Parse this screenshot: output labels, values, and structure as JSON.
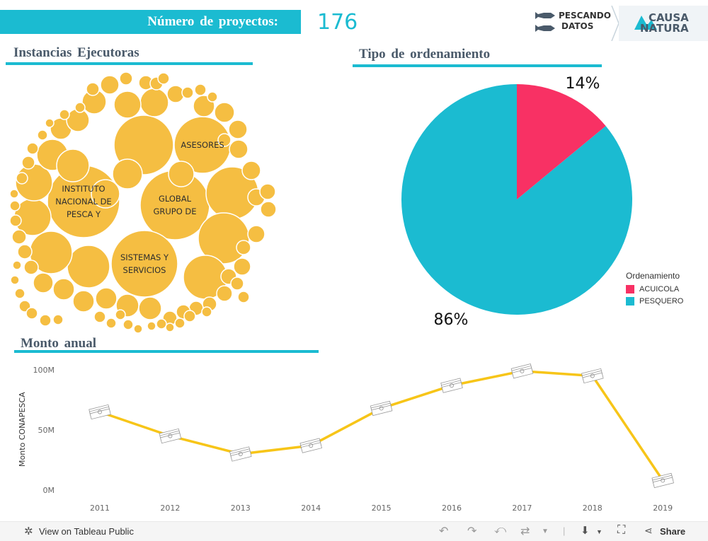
{
  "kpi": {
    "label": "Número de proyectos:",
    "value": "176"
  },
  "brand": {
    "pescando_line1": "PESCANDO",
    "pescando_line2": "DATOS",
    "causa_line1": "CAUSA",
    "causa_line2": "NATURA"
  },
  "sections": {
    "instancias": "Instancias Ejecutoras",
    "tipo": "Tipo de ordenamiento",
    "monto": "Monto anual"
  },
  "bubbles": {
    "labels": [
      {
        "lines": [
          "INSTITUTO",
          "NACIONAL DE",
          "PESCA Y"
        ]
      },
      {
        "lines": [
          "GLOBAL",
          "GRUPO DE"
        ]
      },
      {
        "lines": [
          "ASESORES"
        ]
      },
      {
        "lines": [
          "SISTEMAS Y",
          "SERVICIOS"
        ]
      }
    ],
    "color": "#f5be42"
  },
  "legend": {
    "title": "Ordenamiento",
    "items": [
      {
        "label": "ACUICOLA",
        "color": "#f83164"
      },
      {
        "label": "PESQUERO",
        "color": "#1bbbd1"
      }
    ]
  },
  "chart_data": [
    {
      "type": "pie",
      "title": "Tipo de ordenamiento",
      "categories": [
        "ACUICOLA",
        "PESQUERO"
      ],
      "values": [
        14,
        86
      ],
      "labels": [
        "14%",
        "86%"
      ],
      "colors": [
        "#f83164",
        "#1bbbd1"
      ]
    },
    {
      "type": "line",
      "title": "Monto anual",
      "ylabel": "Monto CONAPESCA",
      "xlabel": "",
      "x": [
        "2011",
        "2012",
        "2013",
        "2014",
        "2015",
        "2016",
        "2017",
        "2018",
        "2019"
      ],
      "values": [
        65,
        45,
        30,
        37,
        68,
        87,
        99,
        95,
        8
      ],
      "yticks": [
        0,
        50,
        100
      ],
      "ytick_labels": [
        "0M",
        "50M",
        "100M"
      ],
      "ylim": [
        0,
        100
      ],
      "color": "#f7c518"
    }
  ],
  "footer": {
    "view_label": "View on Tableau Public",
    "share_label": "Share"
  }
}
